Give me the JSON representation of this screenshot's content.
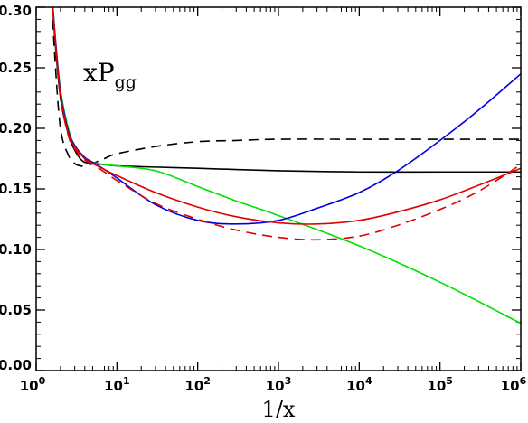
{
  "chart_data": {
    "type": "line",
    "xlabel": "1/x",
    "ylabel": "",
    "annotation": {
      "main": "xP",
      "sub": "gg"
    },
    "x_scale": "log",
    "xlim": [
      1,
      1000000
    ],
    "ylim": [
      0,
      0.3
    ],
    "x_ticks": [
      {
        "base": "10",
        "exp": "0",
        "value": 1
      },
      {
        "base": "10",
        "exp": "1",
        "value": 10
      },
      {
        "base": "10",
        "exp": "2",
        "value": 100
      },
      {
        "base": "10",
        "exp": "3",
        "value": 1000
      },
      {
        "base": "10",
        "exp": "4",
        "value": 10000
      },
      {
        "base": "10",
        "exp": "5",
        "value": 100000
      },
      {
        "base": "10",
        "exp": "6",
        "value": 1000000
      }
    ],
    "y_ticks": [
      "0.00",
      "0.05",
      "0.10",
      "0.15",
      "0.20",
      "0.25",
      "0.30"
    ],
    "y_tick_values": [
      0,
      0.05,
      0.1,
      0.15,
      0.2,
      0.25,
      0.3
    ],
    "series": [
      {
        "color": "#000000",
        "dash": "solid",
        "x": [
          1.5,
          1.7,
          2,
          2.5,
          3,
          3.5,
          4,
          5,
          7,
          10,
          30,
          100,
          300,
          1000,
          10000,
          100000,
          1000000
        ],
        "y": [
          0.33,
          0.275,
          0.225,
          0.195,
          0.182,
          0.175,
          0.172,
          0.171,
          0.17,
          0.169,
          0.168,
          0.167,
          0.166,
          0.165,
          0.164,
          0.164,
          0.164
        ]
      },
      {
        "color": "#000000",
        "dash": "dashed",
        "x": [
          1.5,
          1.7,
          2,
          2.5,
          3,
          3.5,
          4,
          5,
          7,
          10,
          30,
          100,
          300,
          1000,
          10000,
          100000,
          1000000
        ],
        "y": [
          0.33,
          0.26,
          0.2,
          0.178,
          0.171,
          0.169,
          0.169,
          0.171,
          0.175,
          0.179,
          0.185,
          0.189,
          0.19,
          0.191,
          0.191,
          0.191,
          0.191
        ]
      },
      {
        "color": "#00e000",
        "dash": "solid",
        "x": [
          1.5,
          1.7,
          2,
          2.5,
          3,
          4,
          5,
          7,
          10,
          30,
          100,
          300,
          1000,
          10000,
          100000,
          1000000
        ],
        "y": [
          0.33,
          0.28,
          0.232,
          0.2,
          0.186,
          0.175,
          0.172,
          0.17,
          0.169,
          0.165,
          0.152,
          0.14,
          0.128,
          0.103,
          0.073,
          0.039
        ]
      },
      {
        "color": "#0000e0",
        "dash": "solid",
        "x": [
          1.5,
          1.7,
          2,
          2.5,
          3,
          4,
          5,
          7,
          10,
          30,
          100,
          300,
          1000,
          3000,
          10000,
          30000,
          100000,
          300000,
          1000000
        ],
        "y": [
          0.33,
          0.28,
          0.23,
          0.198,
          0.186,
          0.176,
          0.172,
          0.166,
          0.159,
          0.137,
          0.124,
          0.121,
          0.124,
          0.134,
          0.147,
          0.165,
          0.19,
          0.215,
          0.245
        ]
      },
      {
        "color": "#e00000",
        "dash": "solid",
        "x": [
          1.5,
          1.7,
          2,
          2.5,
          3,
          4,
          5,
          7,
          10,
          30,
          100,
          300,
          1000,
          3000,
          10000,
          30000,
          100000,
          300000,
          1000000
        ],
        "y": [
          0.33,
          0.278,
          0.228,
          0.196,
          0.185,
          0.175,
          0.171,
          0.166,
          0.161,
          0.147,
          0.135,
          0.127,
          0.122,
          0.121,
          0.124,
          0.131,
          0.141,
          0.153,
          0.167
        ]
      },
      {
        "color": "#e00000",
        "dash": "dashed",
        "x": [
          1.5,
          1.7,
          2,
          2.5,
          3,
          4,
          5,
          7,
          10,
          30,
          100,
          300,
          1000,
          3000,
          10000,
          30000,
          100000,
          300000,
          1000000
        ],
        "y": [
          0.33,
          0.277,
          0.226,
          0.194,
          0.183,
          0.174,
          0.17,
          0.164,
          0.157,
          0.138,
          0.125,
          0.116,
          0.11,
          0.108,
          0.111,
          0.12,
          0.133,
          0.148,
          0.17
        ]
      }
    ]
  }
}
